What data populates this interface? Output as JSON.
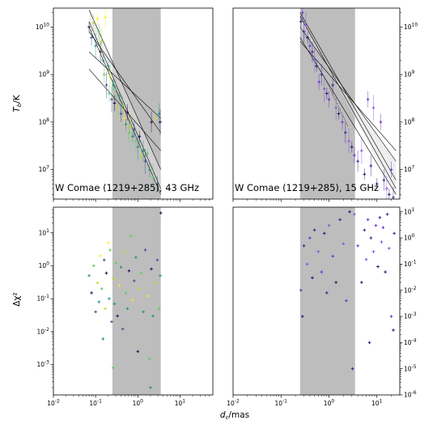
{
  "figure": {
    "ylabel_top": "T_b/K",
    "ylabel_bottom": "Δχ²",
    "xlabel": "d_c/mas"
  },
  "colors": {
    "shade": "#bdbdbd",
    "fit_line": "#000000",
    "band_fill": "#e0e0e0",
    "spectrum43": [
      "#2b0f54",
      "#3b528b",
      "#21908d",
      "#5ec962",
      "#b5de2b",
      "#fde725"
    ],
    "spectrum15": [
      "#1a1a6e",
      "#3b1f8f",
      "#6a2ecc",
      "#8a4fe0"
    ]
  },
  "chart_data": [
    {
      "panel": "top-left",
      "type": "scatter",
      "annotation": "W Comae (1219+285), 43 GHz",
      "xscale": "log",
      "yscale": "log",
      "xlim": [
        0.01,
        60
      ],
      "ylim": [
        2400000.0,
        25000000000.0
      ],
      "shaded_x": [
        0.25,
        3.5
      ],
      "y_tick_labels": [
        "10^7",
        "10^8",
        "10^9",
        "10^10"
      ],
      "y_ticks": [
        10000000.0,
        100000000.0,
        1000000000.0,
        10000000000.0
      ],
      "y_axis_side": "left",
      "x_ticks_labeled": false,
      "fit_lines": [
        {
          "x": [
            0.07,
            3.5
          ],
          "y": [
            23000000000.0,
            10000000.0
          ]
        },
        {
          "x": [
            0.07,
            3.5
          ],
          "y": [
            13000000000.0,
            4000000.0
          ]
        },
        {
          "x": [
            0.07,
            3.5
          ],
          "y": [
            10000000000.0,
            3000000.0
          ]
        },
        {
          "x": [
            0.07,
            3.5
          ],
          "y": [
            8000000000.0,
            60000000.0
          ]
        },
        {
          "x": [
            0.07,
            3.5
          ],
          "y": [
            3000000000.0,
            120000000.0
          ]
        },
        {
          "x": [
            0.07,
            3.5
          ],
          "y": [
            1300000000.0,
            25000000.0
          ]
        }
      ],
      "points": [
        {
          "x": 0.07,
          "y": 10000000000.0,
          "c": 0
        },
        {
          "x": 0.08,
          "y": 6000000000.0,
          "c": 1
        },
        {
          "x": 0.09,
          "y": 12000000000.0,
          "c": 4
        },
        {
          "x": 0.1,
          "y": 4000000000.0,
          "c": 2
        },
        {
          "x": 0.11,
          "y": 15000000000.0,
          "c": 5
        },
        {
          "x": 0.12,
          "y": 8000000000.0,
          "c": 3
        },
        {
          "x": 0.13,
          "y": 3000000000.0,
          "c": 0
        },
        {
          "x": 0.14,
          "y": 5000000000.0,
          "c": 4
        },
        {
          "x": 0.15,
          "y": 2000000000.0,
          "c": 2
        },
        {
          "x": 0.16,
          "y": 1000000000.0,
          "c": 3
        },
        {
          "x": 0.17,
          "y": 16000000000.0,
          "c": 5
        },
        {
          "x": 0.18,
          "y": 600000000.0,
          "c": 1
        },
        {
          "x": 0.2,
          "y": 1500000000.0,
          "c": 2
        },
        {
          "x": 0.21,
          "y": 400000000.0,
          "c": 3
        },
        {
          "x": 0.22,
          "y": 900000000.0,
          "c": 4
        },
        {
          "x": 0.24,
          "y": 300000000.0,
          "c": 1
        },
        {
          "x": 0.26,
          "y": 600000000.0,
          "c": 2
        },
        {
          "x": 0.28,
          "y": 250000000.0,
          "c": 0
        },
        {
          "x": 0.3,
          "y": 500000000.0,
          "c": 3
        },
        {
          "x": 0.33,
          "y": 200000000.0,
          "c": 4
        },
        {
          "x": 0.36,
          "y": 350000000.0,
          "c": 2
        },
        {
          "x": 0.4,
          "y": 150000000.0,
          "c": 1
        },
        {
          "x": 0.44,
          "y": 220000000.0,
          "c": 3
        },
        {
          "x": 0.48,
          "y": 120000000.0,
          "c": 5
        },
        {
          "x": 0.52,
          "y": 90000000.0,
          "c": 2
        },
        {
          "x": 0.57,
          "y": 160000000.0,
          "c": 0
        },
        {
          "x": 0.62,
          "y": 60000000.0,
          "c": 3
        },
        {
          "x": 0.68,
          "y": 80000000.0,
          "c": 4
        },
        {
          "x": 0.75,
          "y": 50000000.0,
          "c": 2
        },
        {
          "x": 0.82,
          "y": 70000000.0,
          "c": 1
        },
        {
          "x": 0.9,
          "y": 40000000.0,
          "c": 3
        },
        {
          "x": 1.0,
          "y": 30000000.0,
          "c": 2
        },
        {
          "x": 1.1,
          "y": 50000000.0,
          "c": 0
        },
        {
          "x": 1.2,
          "y": 20000000.0,
          "c": 4
        },
        {
          "x": 1.35,
          "y": 25000000.0,
          "c": 2
        },
        {
          "x": 1.5,
          "y": 15000000.0,
          "c": 1
        },
        {
          "x": 1.7,
          "y": 22000000.0,
          "c": 3
        },
        {
          "x": 1.9,
          "y": 10000000.0,
          "c": 2
        },
        {
          "x": 2.1,
          "y": 100000000.0,
          "c": 0
        },
        {
          "x": 2.3,
          "y": 7000000.0,
          "c": 3
        },
        {
          "x": 2.6,
          "y": 120000000.0,
          "c": 4
        },
        {
          "x": 2.9,
          "y": 5000000.0,
          "c": 1
        },
        {
          "x": 3.2,
          "y": 150000000.0,
          "c": 2
        },
        {
          "x": 3.4,
          "y": 100000000.0,
          "c": 0
        }
      ]
    },
    {
      "panel": "top-right",
      "type": "scatter",
      "annotation": "W Comae (1219+285), 15 GHz",
      "xscale": "log",
      "yscale": "log",
      "xlim": [
        0.01,
        30
      ],
      "ylim": [
        2400000.0,
        25000000000.0
      ],
      "shaded_x": [
        0.25,
        3.5
      ],
      "y_tick_labels": [
        "10^7",
        "10^8",
        "10^9",
        "10^10"
      ],
      "y_ticks": [
        10000000.0,
        100000000.0,
        1000000000.0,
        10000000000.0
      ],
      "y_axis_side": "right",
      "x_ticks_labeled": false,
      "fit_lines": [
        {
          "x": [
            0.25,
            25
          ],
          "y": [
            10000000000.0,
            15000000.0
          ]
        },
        {
          "x": [
            0.25,
            25
          ],
          "y": [
            17000000000.0,
            4000000.0
          ]
        },
        {
          "x": [
            0.25,
            25
          ],
          "y": [
            6000000000.0,
            3000000.0
          ]
        },
        {
          "x": [
            0.25,
            25
          ],
          "y": [
            20000000000.0,
            6000000.0
          ]
        },
        {
          "x": [
            0.25,
            25
          ],
          "y": [
            5000000000.0,
            25000000.0
          ]
        }
      ],
      "dotted_line": {
        "x": [
          0.8,
          2.5
        ],
        "y": [
          900000000.0,
          80000000.0
        ]
      },
      "points": [
        {
          "x": 0.26,
          "y": 13000000000.0,
          "c": 0
        },
        {
          "x": 0.28,
          "y": 20000000000.0,
          "c": 2
        },
        {
          "x": 0.3,
          "y": 8000000000.0,
          "c": 1
        },
        {
          "x": 0.33,
          "y": 11000000000.0,
          "c": 3
        },
        {
          "x": 0.36,
          "y": 6000000000.0,
          "c": 0
        },
        {
          "x": 0.4,
          "y": 4000000000.0,
          "c": 2
        },
        {
          "x": 0.45,
          "y": 3000000000.0,
          "c": 1
        },
        {
          "x": 0.5,
          "y": 2000000000.0,
          "c": 3
        },
        {
          "x": 0.55,
          "y": 1500000000.0,
          "c": 0
        },
        {
          "x": 0.62,
          "y": 700000000.0,
          "c": 2
        },
        {
          "x": 0.7,
          "y": 1000000000.0,
          "c": 1
        },
        {
          "x": 0.8,
          "y": 500000000.0,
          "c": 3
        },
        {
          "x": 0.9,
          "y": 400000000.0,
          "c": 0
        },
        {
          "x": 1.0,
          "y": 300000000.0,
          "c": 2
        },
        {
          "x": 1.2,
          "y": 600000000.0,
          "c": 1
        },
        {
          "x": 1.4,
          "y": 200000000.0,
          "c": 3
        },
        {
          "x": 1.6,
          "y": 150000000.0,
          "c": 0
        },
        {
          "x": 1.9,
          "y": 100000000.0,
          "c": 2
        },
        {
          "x": 2.2,
          "y": 60000000.0,
          "c": 1
        },
        {
          "x": 2.6,
          "y": 40000000.0,
          "c": 3
        },
        {
          "x": 3.0,
          "y": 30000000.0,
          "c": 0
        },
        {
          "x": 3.4,
          "y": 20000000.0,
          "c": 2
        },
        {
          "x": 4.0,
          "y": 15000000.0,
          "c": 1
        },
        {
          "x": 4.8,
          "y": 25000000.0,
          "c": 3
        },
        {
          "x": 5.5,
          "y": 8000000.0,
          "c": 0
        },
        {
          "x": 6.5,
          "y": 300000000.0,
          "c": 2
        },
        {
          "x": 7.5,
          "y": 12000000.0,
          "c": 1
        },
        {
          "x": 8.5,
          "y": 200000000.0,
          "c": 3
        },
        {
          "x": 10.0,
          "y": 5000000.0,
          "c": 0
        },
        {
          "x": 12.0,
          "y": 100000000.0,
          "c": 2
        },
        {
          "x": 14.0,
          "y": 6000000.0,
          "c": 1
        },
        {
          "x": 16.0,
          "y": 4000000.0,
          "c": 3
        },
        {
          "x": 18.0,
          "y": 3000000.0,
          "c": 0
        },
        {
          "x": 20.0,
          "y": 10000000.0,
          "c": 2
        },
        {
          "x": 22.0,
          "y": 2600000.0,
          "c": 1
        }
      ]
    },
    {
      "panel": "bottom-left",
      "type": "scatter",
      "xscale": "log",
      "yscale": "log",
      "xlim": [
        0.01,
        60
      ],
      "ylim": [
        0.00012,
        60
      ],
      "shaded_x": [
        0.25,
        3.5
      ],
      "y_tick_labels": [
        "10^-3",
        "10^-2",
        "10^-1",
        "10^0",
        "10^1"
      ],
      "y_ticks": [
        0.001,
        0.01,
        0.1,
        1,
        10
      ],
      "y_axis_side": "left",
      "x_tick_labels": [
        "10^-2",
        "10^-1",
        "10^0",
        "10^1"
      ],
      "x_ticks": [
        0.01,
        0.1,
        1,
        10
      ],
      "points": [
        {
          "x": 0.07,
          "y": 0.5,
          "c": 2
        },
        {
          "x": 0.08,
          "y": 0.15,
          "c": 0
        },
        {
          "x": 0.09,
          "y": 1.0,
          "c": 3
        },
        {
          "x": 0.1,
          "y": 0.04,
          "c": 1
        },
        {
          "x": 0.11,
          "y": 0.3,
          "c": 4
        },
        {
          "x": 0.12,
          "y": 0.08,
          "c": 2
        },
        {
          "x": 0.13,
          "y": 2.0,
          "c": 5
        },
        {
          "x": 0.14,
          "y": 0.2,
          "c": 3
        },
        {
          "x": 0.15,
          "y": 0.006,
          "c": 2
        },
        {
          "x": 0.16,
          "y": 1.5,
          "c": 1
        },
        {
          "x": 0.17,
          "y": 0.05,
          "c": 4
        },
        {
          "x": 0.18,
          "y": 0.6,
          "c": 0
        },
        {
          "x": 0.2,
          "y": 5.0,
          "c": 5
        },
        {
          "x": 0.21,
          "y": 0.1,
          "c": 2
        },
        {
          "x": 0.22,
          "y": 3.0,
          "c": 3
        },
        {
          "x": 0.24,
          "y": 0.02,
          "c": 1
        },
        {
          "x": 0.26,
          "y": 0.4,
          "c": 4
        },
        {
          "x": 0.28,
          "y": 0.07,
          "c": 2
        },
        {
          "x": 0.3,
          "y": 1.2,
          "c": 3
        },
        {
          "x": 0.33,
          "y": 0.03,
          "c": 0
        },
        {
          "x": 0.36,
          "y": 0.25,
          "c": 5
        },
        {
          "x": 0.4,
          "y": 0.9,
          "c": 2
        },
        {
          "x": 0.44,
          "y": 0.012,
          "c": 1
        },
        {
          "x": 0.48,
          "y": 2.5,
          "c": 4
        },
        {
          "x": 0.52,
          "y": 0.15,
          "c": 3
        },
        {
          "x": 0.57,
          "y": 0.05,
          "c": 2
        },
        {
          "x": 0.62,
          "y": 0.7,
          "c": 0
        },
        {
          "x": 0.68,
          "y": 8.0,
          "c": 3
        },
        {
          "x": 0.75,
          "y": 0.09,
          "c": 5
        },
        {
          "x": 0.82,
          "y": 0.35,
          "c": 1
        },
        {
          "x": 0.9,
          "y": 1.8,
          "c": 2
        },
        {
          "x": 1.0,
          "y": 0.0025,
          "c": 0
        },
        {
          "x": 1.1,
          "y": 0.2,
          "c": 4
        },
        {
          "x": 1.2,
          "y": 0.6,
          "c": 3
        },
        {
          "x": 1.35,
          "y": 0.04,
          "c": 2
        },
        {
          "x": 1.5,
          "y": 3.0,
          "c": 1
        },
        {
          "x": 1.7,
          "y": 0.12,
          "c": 5
        },
        {
          "x": 1.9,
          "y": 0.0015,
          "c": 3
        },
        {
          "x": 2.1,
          "y": 0.8,
          "c": 0
        },
        {
          "x": 2.3,
          "y": 0.03,
          "c": 2
        },
        {
          "x": 2.6,
          "y": 0.3,
          "c": 4
        },
        {
          "x": 2.9,
          "y": 1.5,
          "c": 1
        },
        {
          "x": 3.2,
          "y": 0.05,
          "c": 3
        },
        {
          "x": 3.4,
          "y": 0.5,
          "c": 2
        },
        {
          "x": 3.5,
          "y": 40.0,
          "c": 0
        },
        {
          "x": 2.0,
          "y": 0.0002,
          "c": 2
        },
        {
          "x": 0.26,
          "y": 0.0008,
          "c": 3
        }
      ]
    },
    {
      "panel": "bottom-right",
      "type": "scatter",
      "xscale": "log",
      "yscale": "log",
      "xlim": [
        0.01,
        30
      ],
      "ylim": [
        1e-06,
        15
      ],
      "shaded_x": [
        0.25,
        3.5
      ],
      "y_tick_labels": [
        "10^-6",
        "10^-5",
        "10^-4",
        "10^-3",
        "10^-2",
        "10^-1",
        "10^0",
        "10^1"
      ],
      "y_ticks": [
        1e-06,
        1e-05,
        0.0001,
        0.001,
        0.01,
        0.1,
        1,
        10
      ],
      "y_axis_side": "right",
      "x_tick_labels": [
        "10^-2",
        "10^-1",
        "10^0",
        "10^1"
      ],
      "x_ticks": [
        0.01,
        0.1,
        1,
        10
      ],
      "points": [
        {
          "x": 0.26,
          "y": 0.01,
          "c": 2
        },
        {
          "x": 0.28,
          "y": 0.001,
          "c": 0
        },
        {
          "x": 0.3,
          "y": 0.5,
          "c": 1
        },
        {
          "x": 0.35,
          "y": 0.1,
          "c": 3
        },
        {
          "x": 0.4,
          "y": 1.0,
          "c": 2
        },
        {
          "x": 0.45,
          "y": 0.03,
          "c": 0
        },
        {
          "x": 0.5,
          "y": 2.0,
          "c": 1
        },
        {
          "x": 0.6,
          "y": 0.3,
          "c": 3
        },
        {
          "x": 0.7,
          "y": 0.05,
          "c": 2
        },
        {
          "x": 0.8,
          "y": 1.5,
          "c": 0
        },
        {
          "x": 0.9,
          "y": 0.008,
          "c": 1
        },
        {
          "x": 1.0,
          "y": 3.0,
          "c": 3
        },
        {
          "x": 1.2,
          "y": 0.2,
          "c": 2
        },
        {
          "x": 1.4,
          "y": 0.02,
          "c": 0
        },
        {
          "x": 1.7,
          "y": 5.0,
          "c": 1
        },
        {
          "x": 2.0,
          "y": 0.6,
          "c": 3
        },
        {
          "x": 2.3,
          "y": 0.004,
          "c": 2
        },
        {
          "x": 2.7,
          "y": 10.0,
          "c": 0
        },
        {
          "x": 3.1,
          "y": 1e-05,
          "c": 1
        },
        {
          "x": 3.4,
          "y": 8.0,
          "c": 3
        },
        {
          "x": 4.0,
          "y": 0.5,
          "c": 2
        },
        {
          "x": 4.8,
          "y": 0.02,
          "c": 0
        },
        {
          "x": 5.5,
          "y": 2.0,
          "c": 1
        },
        {
          "x": 6.0,
          "y": 0.15,
          "c": 3
        },
        {
          "x": 6.5,
          "y": 5.0,
          "c": 2
        },
        {
          "x": 7.0,
          "y": 0.0001,
          "c": 0
        },
        {
          "x": 7.5,
          "y": 1.0,
          "c": 1
        },
        {
          "x": 8.5,
          "y": 0.3,
          "c": 3
        },
        {
          "x": 9.5,
          "y": 3.0,
          "c": 2
        },
        {
          "x": 10.5,
          "y": 0.08,
          "c": 0
        },
        {
          "x": 11.5,
          "y": 6.0,
          "c": 1
        },
        {
          "x": 12.5,
          "y": 0.7,
          "c": 3
        },
        {
          "x": 13.5,
          "y": 2.5,
          "c": 2
        },
        {
          "x": 15.0,
          "y": 0.05,
          "c": 0
        },
        {
          "x": 16.5,
          "y": 8.0,
          "c": 1
        },
        {
          "x": 18.0,
          "y": 0.4,
          "c": 3
        },
        {
          "x": 20.0,
          "y": 0.001,
          "c": 2
        },
        {
          "x": 22.0,
          "y": 0.0003,
          "c": 0
        },
        {
          "x": 23.0,
          "y": 1.5,
          "c": 1
        }
      ]
    }
  ]
}
